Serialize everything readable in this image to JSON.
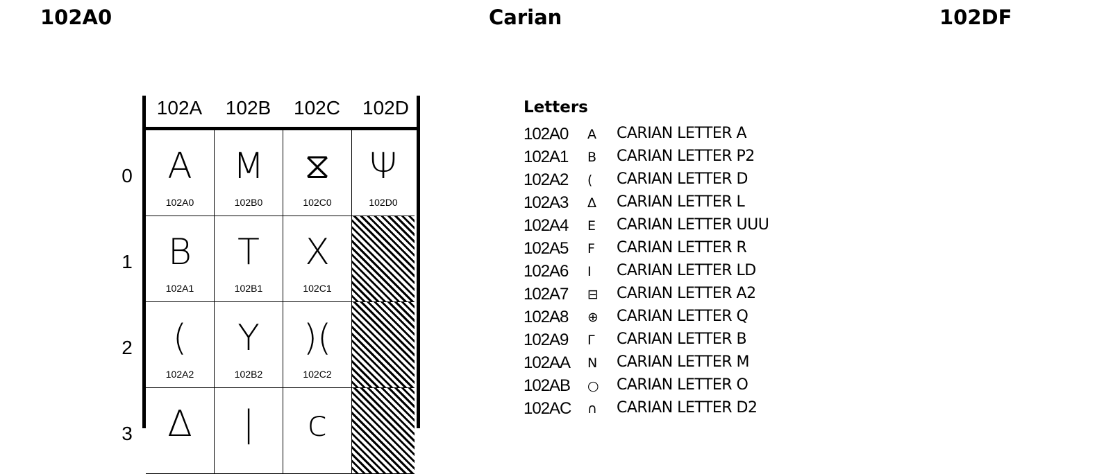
{
  "header": {
    "range_start": "102A0",
    "title": "Carian",
    "range_end": "102DF"
  },
  "grid": {
    "columns": [
      "102A",
      "102B",
      "102C",
      "102D"
    ],
    "rows": [
      "0",
      "1",
      "2",
      "3"
    ],
    "cells": [
      [
        {
          "glyph": "A",
          "code": "102A0"
        },
        {
          "glyph": "M",
          "code": "102B0"
        },
        {
          "glyph": "⧖",
          "code": "102C0"
        },
        {
          "glyph": "Ψ",
          "code": "102D0"
        }
      ],
      [
        {
          "glyph": "B",
          "code": "102A1"
        },
        {
          "glyph": "T",
          "code": "102B1"
        },
        {
          "glyph": "X",
          "code": "102C1"
        },
        null
      ],
      [
        {
          "glyph": "(",
          "code": "102A2"
        },
        {
          "glyph": "Y",
          "code": "102B2"
        },
        {
          "glyph": ")(",
          "code": "102C2"
        },
        null
      ],
      [
        {
          "glyph": "Δ",
          "code": ""
        },
        {
          "glyph": "|",
          "code": ""
        },
        {
          "glyph": "ϲ",
          "code": ""
        },
        null
      ]
    ]
  },
  "list": {
    "section": "Letters",
    "items": [
      {
        "code": "102A0",
        "glyph": "A",
        "name": "CARIAN LETTER A"
      },
      {
        "code": "102A1",
        "glyph": "B",
        "name": "CARIAN LETTER P2"
      },
      {
        "code": "102A2",
        "glyph": "(",
        "name": "CARIAN LETTER D"
      },
      {
        "code": "102A3",
        "glyph": "Δ",
        "name": "CARIAN LETTER L"
      },
      {
        "code": "102A4",
        "glyph": "Ε",
        "name": "CARIAN LETTER UUU"
      },
      {
        "code": "102A5",
        "glyph": "F",
        "name": "CARIAN LETTER R"
      },
      {
        "code": "102A6",
        "glyph": "I",
        "name": "CARIAN LETTER LD"
      },
      {
        "code": "102A7",
        "glyph": "⊟",
        "name": "CARIAN LETTER A2"
      },
      {
        "code": "102A8",
        "glyph": "⊕",
        "name": "CARIAN LETTER Q"
      },
      {
        "code": "102A9",
        "glyph": "Γ",
        "name": "CARIAN LETTER B"
      },
      {
        "code": "102AA",
        "glyph": "N",
        "name": "CARIAN LETTER M"
      },
      {
        "code": "102AB",
        "glyph": "○",
        "name": "CARIAN LETTER O"
      },
      {
        "code": "102AC",
        "glyph": "∩",
        "name": "CARIAN LETTER D2"
      }
    ]
  }
}
